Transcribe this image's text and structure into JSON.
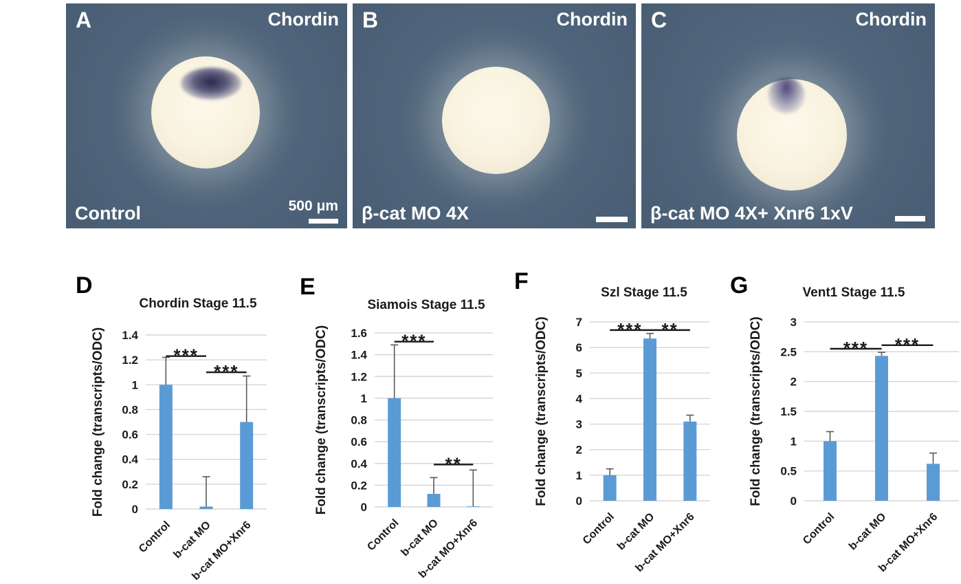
{
  "colors": {
    "bar": "#5B9BD5",
    "gridline": "#D6D6D6",
    "error_bar": "#595959",
    "significance": "#1A1A1A",
    "photo_background": "#4E6379",
    "photo_text": "#FFFFFF",
    "stain": "#3B3A66"
  },
  "photos": {
    "gene_label": "Chordin",
    "panels": [
      {
        "letter": "A",
        "condition": "Control",
        "scale_bar_text": "500 μm"
      },
      {
        "letter": "B",
        "condition": "β-cat MO 4X",
        "scale_bar_text": ""
      },
      {
        "letter": "C",
        "condition": "β-cat MO 4X+ Xnr6 1xV",
        "scale_bar_text": ""
      }
    ]
  },
  "chart_data": [
    {
      "type": "bar",
      "panel_letter": "D",
      "title": "Chordin Stage 11.5",
      "xlabel": "",
      "ylabel": "Fold change (transcripts/ODC)",
      "categories": [
        "Control",
        "b-cat MO",
        "b-cat MO+Xnr6"
      ],
      "values": [
        1.0,
        0.02,
        0.7
      ],
      "errors_plus": [
        0.22,
        0.24,
        0.37
      ],
      "ylim": [
        0,
        1.4
      ],
      "yticks": [
        "0",
        "0.2",
        "0.4",
        "0.6",
        "0.8",
        "1",
        "1.2",
        "1.4"
      ],
      "grid": true,
      "legend": "none",
      "bar_color": "#5B9BD5",
      "significance": [
        {
          "between": [
            0,
            1
          ],
          "label": "***",
          "y": 1.23
        },
        {
          "between": [
            1,
            2
          ],
          "label": "***",
          "y": 1.1
        }
      ]
    },
    {
      "type": "bar",
      "panel_letter": "E",
      "title": "Siamois Stage 11.5",
      "xlabel": "",
      "ylabel": "Fold change (transcripts/ODC)",
      "categories": [
        "Control",
        "b-cat MO",
        "b-cat MO+Xnr6"
      ],
      "values": [
        1.0,
        0.12,
        0.005
      ],
      "errors_plus": [
        0.49,
        0.15,
        0.335
      ],
      "ylim": [
        0,
        1.6
      ],
      "yticks": [
        "0",
        "0.2",
        "0.4",
        "0.6",
        "0.8",
        "1",
        "1.2",
        "1.4",
        "1.6"
      ],
      "grid": true,
      "legend": "none",
      "bar_color": "#5B9BD5",
      "significance": [
        {
          "between": [
            0,
            1
          ],
          "label": "***",
          "y": 1.52
        },
        {
          "between": [
            1,
            2
          ],
          "label": "**",
          "y": 0.39
        }
      ]
    },
    {
      "type": "bar",
      "panel_letter": "F",
      "title": "Szl Stage 11.5",
      "xlabel": "",
      "ylabel": "Fold change (transcripts/ODC)",
      "categories": [
        "Control",
        "b-cat MO",
        "b-cat MO+Xnr6"
      ],
      "values": [
        1.0,
        6.35,
        3.1
      ],
      "errors_plus": [
        0.25,
        0.2,
        0.25
      ],
      "ylim": [
        0,
        7
      ],
      "yticks": [
        "0",
        "1",
        "2",
        "3",
        "4",
        "5",
        "6",
        "7"
      ],
      "grid": true,
      "legend": "none",
      "bar_color": "#5B9BD5",
      "significance": [
        {
          "between": [
            0,
            1
          ],
          "label": "***",
          "y": 6.68
        },
        {
          "between": [
            1,
            2
          ],
          "label": "**",
          "y": 6.68
        }
      ]
    },
    {
      "type": "bar",
      "panel_letter": "G",
      "title": "Vent1 Stage 11.5",
      "xlabel": "",
      "ylabel": "Fold change (transcripts/ODC)",
      "categories": [
        "Control",
        "b-cat MO",
        "b-cat MO+Xnr6"
      ],
      "values": [
        1.0,
        2.43,
        0.62
      ],
      "errors_plus": [
        0.16,
        0.06,
        0.18
      ],
      "ylim": [
        0,
        3
      ],
      "yticks": [
        "0",
        "0.5",
        "1",
        "1.5",
        "2",
        "2.5",
        "3"
      ],
      "grid": true,
      "legend": "none",
      "bar_color": "#5B9BD5",
      "significance": [
        {
          "between": [
            0,
            1
          ],
          "label": "***",
          "y": 2.55
        },
        {
          "between": [
            1,
            2
          ],
          "label": "***",
          "y": 2.61
        }
      ]
    }
  ]
}
